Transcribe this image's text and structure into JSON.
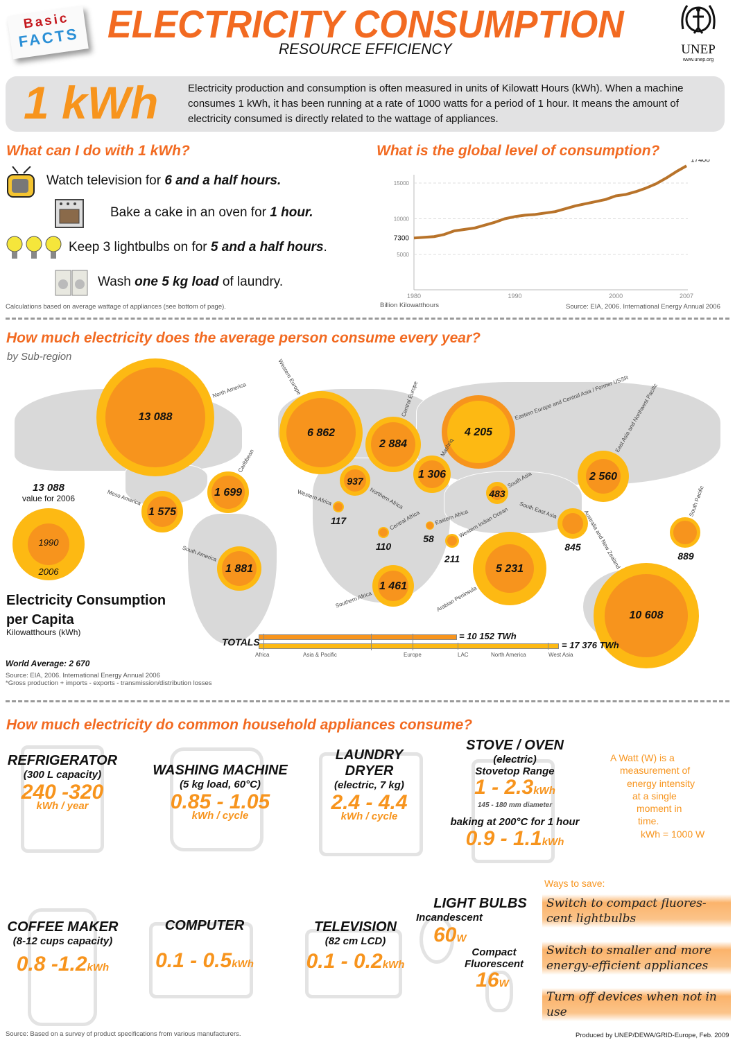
{
  "header": {
    "badge_top": "Basic",
    "badge_bottom": "FACTS",
    "title": "ELECTRICITY CONSUMPTION",
    "subtitle": "RESOURCE EFFICIENCY",
    "logo_text": "UNEP",
    "logo_url": "www.unep.org"
  },
  "intro": {
    "big": "1 kWh",
    "text": "Electricity production and consumption is often measured in units of Kilowatt Hours (kWh). When a machine consumes 1 kWh, it has been running at a rate of 1000 watts for a period of 1 hour. It means the amount of electricity consumed is directly related to the wattage of appliances."
  },
  "what_can": {
    "heading": "What can I do with 1 kWh?",
    "items": [
      {
        "pre": "Watch television for ",
        "bold": "6 and a half hours.",
        "post": "",
        "icon": "television-icon"
      },
      {
        "pre": "Bake a cake in an oven for ",
        "bold": "1 hour.",
        "post": "",
        "icon": "oven-icon"
      },
      {
        "pre": "Keep 3 lightbulbs on for ",
        "bold": "5 and a half hours",
        "post": ".",
        "icon": "lightbulb-icon"
      },
      {
        "pre": "Wash ",
        "bold": "one 5 kg load",
        "post": " of laundry.",
        "icon": "washing-machine-icon"
      }
    ],
    "note": "Calculations based on average wattage of appliances (see bottom of page)."
  },
  "chart_data": {
    "type": "line",
    "title": "What is the global level of consumption?",
    "xlabel": "",
    "ylabel": "Billion Kilowatthours",
    "x": [
      1980,
      1982,
      1983,
      1984,
      1986,
      1988,
      1989,
      1990,
      1991,
      1992,
      1994,
      1996,
      1998,
      1999,
      2000,
      2001,
      2002,
      2003,
      2004,
      2005,
      2006,
      2007
    ],
    "values": [
      7300,
      7500,
      7800,
      8300,
      8700,
      9500,
      10000,
      10300,
      10500,
      10600,
      11000,
      11800,
      12400,
      12700,
      13200,
      13400,
      13800,
      14300,
      14900,
      15700,
      16600,
      17400
    ],
    "xticks": [
      "1980",
      "1990",
      "2000",
      "2007"
    ],
    "yticks": [
      "5000",
      "10000",
      "15000"
    ],
    "xlim": [
      1980,
      2007
    ],
    "ylim": [
      0,
      18000
    ],
    "annotations": {
      "start": "7300",
      "end": "17400"
    },
    "grid": true,
    "color": "#b8732a",
    "source": "Source: EIA, 2006. International Energy Annual 2006"
  },
  "map": {
    "heading": "How much electricity does the average person consume every year?",
    "subheading": "by Sub-region",
    "regions": [
      {
        "name": "North America",
        "value": "13 088"
      },
      {
        "name": "Meso America",
        "value": "1 575"
      },
      {
        "name": "Caribbean",
        "value": "1 699"
      },
      {
        "name": "South America",
        "value": "1 881"
      },
      {
        "name": "Western Europe",
        "value": "6 862"
      },
      {
        "name": "Central Europe",
        "value": "2 884"
      },
      {
        "name": "Northern Africa",
        "value": "937"
      },
      {
        "name": "Western Africa",
        "value": "117"
      },
      {
        "name": "Central Africa",
        "value": "110"
      },
      {
        "name": "Eastern Africa",
        "value": "58"
      },
      {
        "name": "Western Indian Ocean",
        "value": "211"
      },
      {
        "name": "Southern Africa",
        "value": "1 461"
      },
      {
        "name": "Mashriq",
        "value": "1 306"
      },
      {
        "name": "Eastern Europe and Central Asia / Former USSR",
        "value": "4 205"
      },
      {
        "name": "South Asia",
        "value": "483"
      },
      {
        "name": "Arabian Peninsula",
        "value": "5 231"
      },
      {
        "name": "East Asia and Northwest Pacific",
        "value": "2 560"
      },
      {
        "name": "South East Asia",
        "value": "845"
      },
      {
        "name": "South Pacific",
        "value": "889"
      },
      {
        "name": "Australia and New Zealand",
        "value": "10 608"
      }
    ],
    "legend": {
      "value": "13 088",
      "value_note": "value for 2006",
      "inner": "1990",
      "outer": "2006",
      "title1": "Electricity Consumption",
      "title2": "per Capita",
      "unit": "Kilowatthours (kWh)"
    },
    "totals": {
      "label": "TOTALS",
      "sup": "*",
      "t1990": "= 10 152 TWh",
      "t2006": "= 17 376 TWh",
      "segments": [
        "Africa",
        "Asia & Pacific",
        "Europe",
        "LAC",
        "North America",
        "West Asia"
      ]
    },
    "world_average": "World Average: 2 670",
    "source": "Source: EIA, 2006. International Energy Annual 2006",
    "footnote": "*Gross production + imports - exports - transmission/distribution losses",
    "colors": {
      "outer": "#fdb913",
      "inner": "#f7941d"
    }
  },
  "appliances": {
    "heading": "How much electricity do common household appliances consume?",
    "fridge": {
      "t": "REFRIGERATOR",
      "s": "(300 L capacity)",
      "v": "240 -320",
      "u": "kWh / year"
    },
    "washer": {
      "t": "WASHING MACHINE",
      "s": "(5 kg load, 60°C)",
      "v": "0.85 - 1.05",
      "u": "kWh / cycle"
    },
    "dryer": {
      "t1": "LAUNDRY",
      "t2": "DRYER",
      "s": "(electric, 7 kg)",
      "v": "2.4 - 4.4",
      "u": "kWh / cycle"
    },
    "stove": {
      "t": "STOVE / OVEN",
      "s": "(electric)",
      "s2": "Stovetop Range",
      "v1": "1 - 2.3",
      "u1": "kWh",
      "d": "145 - 180 mm diameter",
      "s3": "baking at 200°C for 1 hour",
      "v2": "0.9 - 1.1",
      "u2": "kWh"
    },
    "watt_note": [
      "A Watt (W) is a",
      "measurement of",
      "energy intensity",
      "at a single",
      "moment in",
      "time.",
      "kWh = 1000 W"
    ],
    "coffee": {
      "t": "COFFEE MAKER",
      "s": "(8-12 cups capacity)",
      "v": "0.8 -1.2",
      "u": "kWh"
    },
    "computer": {
      "t": "COMPUTER",
      "v": "0.1 - 0.5",
      "u": "kWh"
    },
    "tv": {
      "t": "TELEVISION",
      "s": "(82 cm LCD)",
      "v": "0.1 - 0.2",
      "u": "kWh"
    },
    "bulbs": {
      "t": "LIGHT BULBS",
      "s1": "Incandescent",
      "v1": "60",
      "u1": "W",
      "s2": "Compact",
      "s3": "Fluorescent",
      "v2": "16",
      "u2": "W"
    },
    "ways": {
      "title": "Ways to save:",
      "tips": [
        "Switch to compact fluores- cent lightbulbs",
        "Switch to smaller and more energy-efficient appliances",
        "Turn off devices when not in use"
      ]
    },
    "source": "Source: Based on a survey of product specifications from various manufacturers.",
    "credit": "Produced by UNEP/DEWA/GRID-Europe, Feb. 2009"
  }
}
